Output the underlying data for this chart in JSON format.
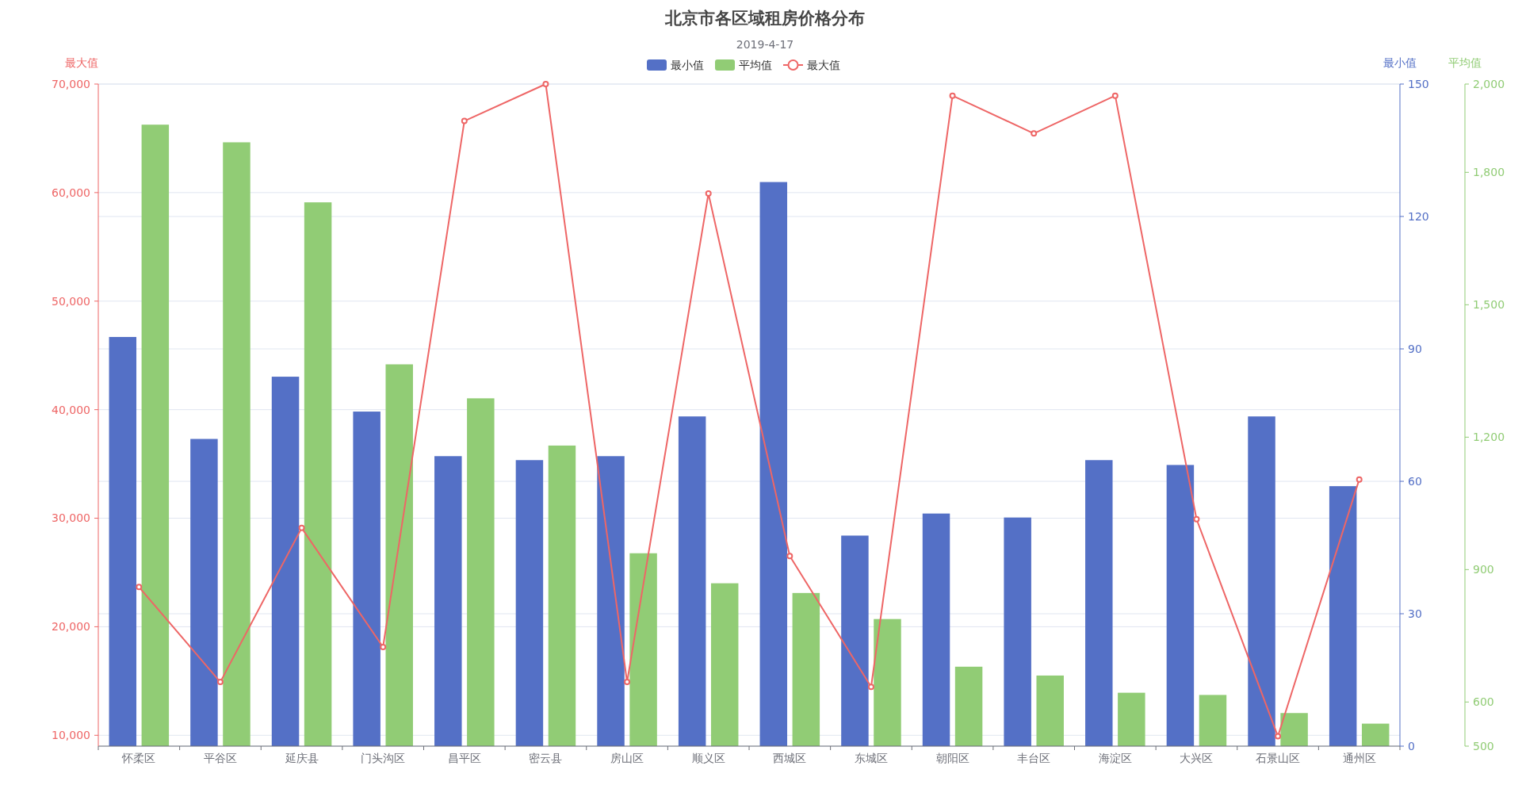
{
  "chart_data": {
    "type": "bar",
    "title": "北京市各区域租房价格分布",
    "subtitle": "2019-4-17",
    "categories": [
      "怀柔区",
      "平谷区",
      "延庆县",
      "门头沟区",
      "昌平区",
      "密云县",
      "房山区",
      "顺义区",
      "西城区",
      "东城区",
      "朝阳区",
      "丰台区",
      "海淀区",
      "大兴区",
      "石景山区",
      "通州区"
    ],
    "series": [
      {
        "name": "最小值",
        "axis": "y2",
        "color": "#5470c6",
        "values": [
          92.7,
          69.6,
          83.7,
          75.8,
          65.7,
          64.8,
          65.7,
          74.7,
          127.8,
          47.7,
          52.7,
          51.8,
          64.8,
          63.7,
          74.7,
          58.9
        ]
      },
      {
        "name": "平均值",
        "axis": "y3",
        "color": "#91cc75",
        "values": [
          1908,
          1868,
          1732,
          1365,
          1288,
          1181,
          937,
          869,
          847,
          788,
          680,
          660,
          621,
          616,
          575,
          551
        ]
      },
      {
        "name": "最大值",
        "type": "line",
        "axis": "y",
        "color": "#ee6666",
        "marker": "circle",
        "values": [
          23660,
          14910,
          29100,
          18130,
          66600,
          70000,
          14910,
          59910,
          26520,
          14460,
          68930,
          65450,
          68930,
          29910,
          9910,
          33570
        ]
      }
    ],
    "ylabel": "最大值",
    "y2label": "最小值",
    "y3label": "平均值",
    "ylim": [
      9000,
      70000
    ],
    "yticks": [
      {
        "value": 10000,
        "label": "10,000"
      },
      {
        "value": 20000,
        "label": "20,000"
      },
      {
        "value": 30000,
        "label": "30,000"
      },
      {
        "value": 40000,
        "label": "40,000"
      },
      {
        "value": 50000,
        "label": "50,000"
      },
      {
        "value": 60000,
        "label": "60,000"
      },
      {
        "value": 70000,
        "label": "70,000"
      }
    ],
    "y2lim": [
      0,
      150
    ],
    "y2ticks": [
      0,
      30,
      60,
      90,
      120,
      150
    ],
    "y3lim": [
      500,
      2000
    ],
    "y3ticks": [
      500,
      600,
      900,
      {
        "value": 1200,
        "label": "1,200"
      },
      {
        "value": 1500,
        "label": "1,500"
      },
      {
        "value": 1800,
        "label": "1,800"
      },
      {
        "value": 2000,
        "label": "2,000"
      }
    ],
    "grid": true,
    "legend": "top"
  }
}
